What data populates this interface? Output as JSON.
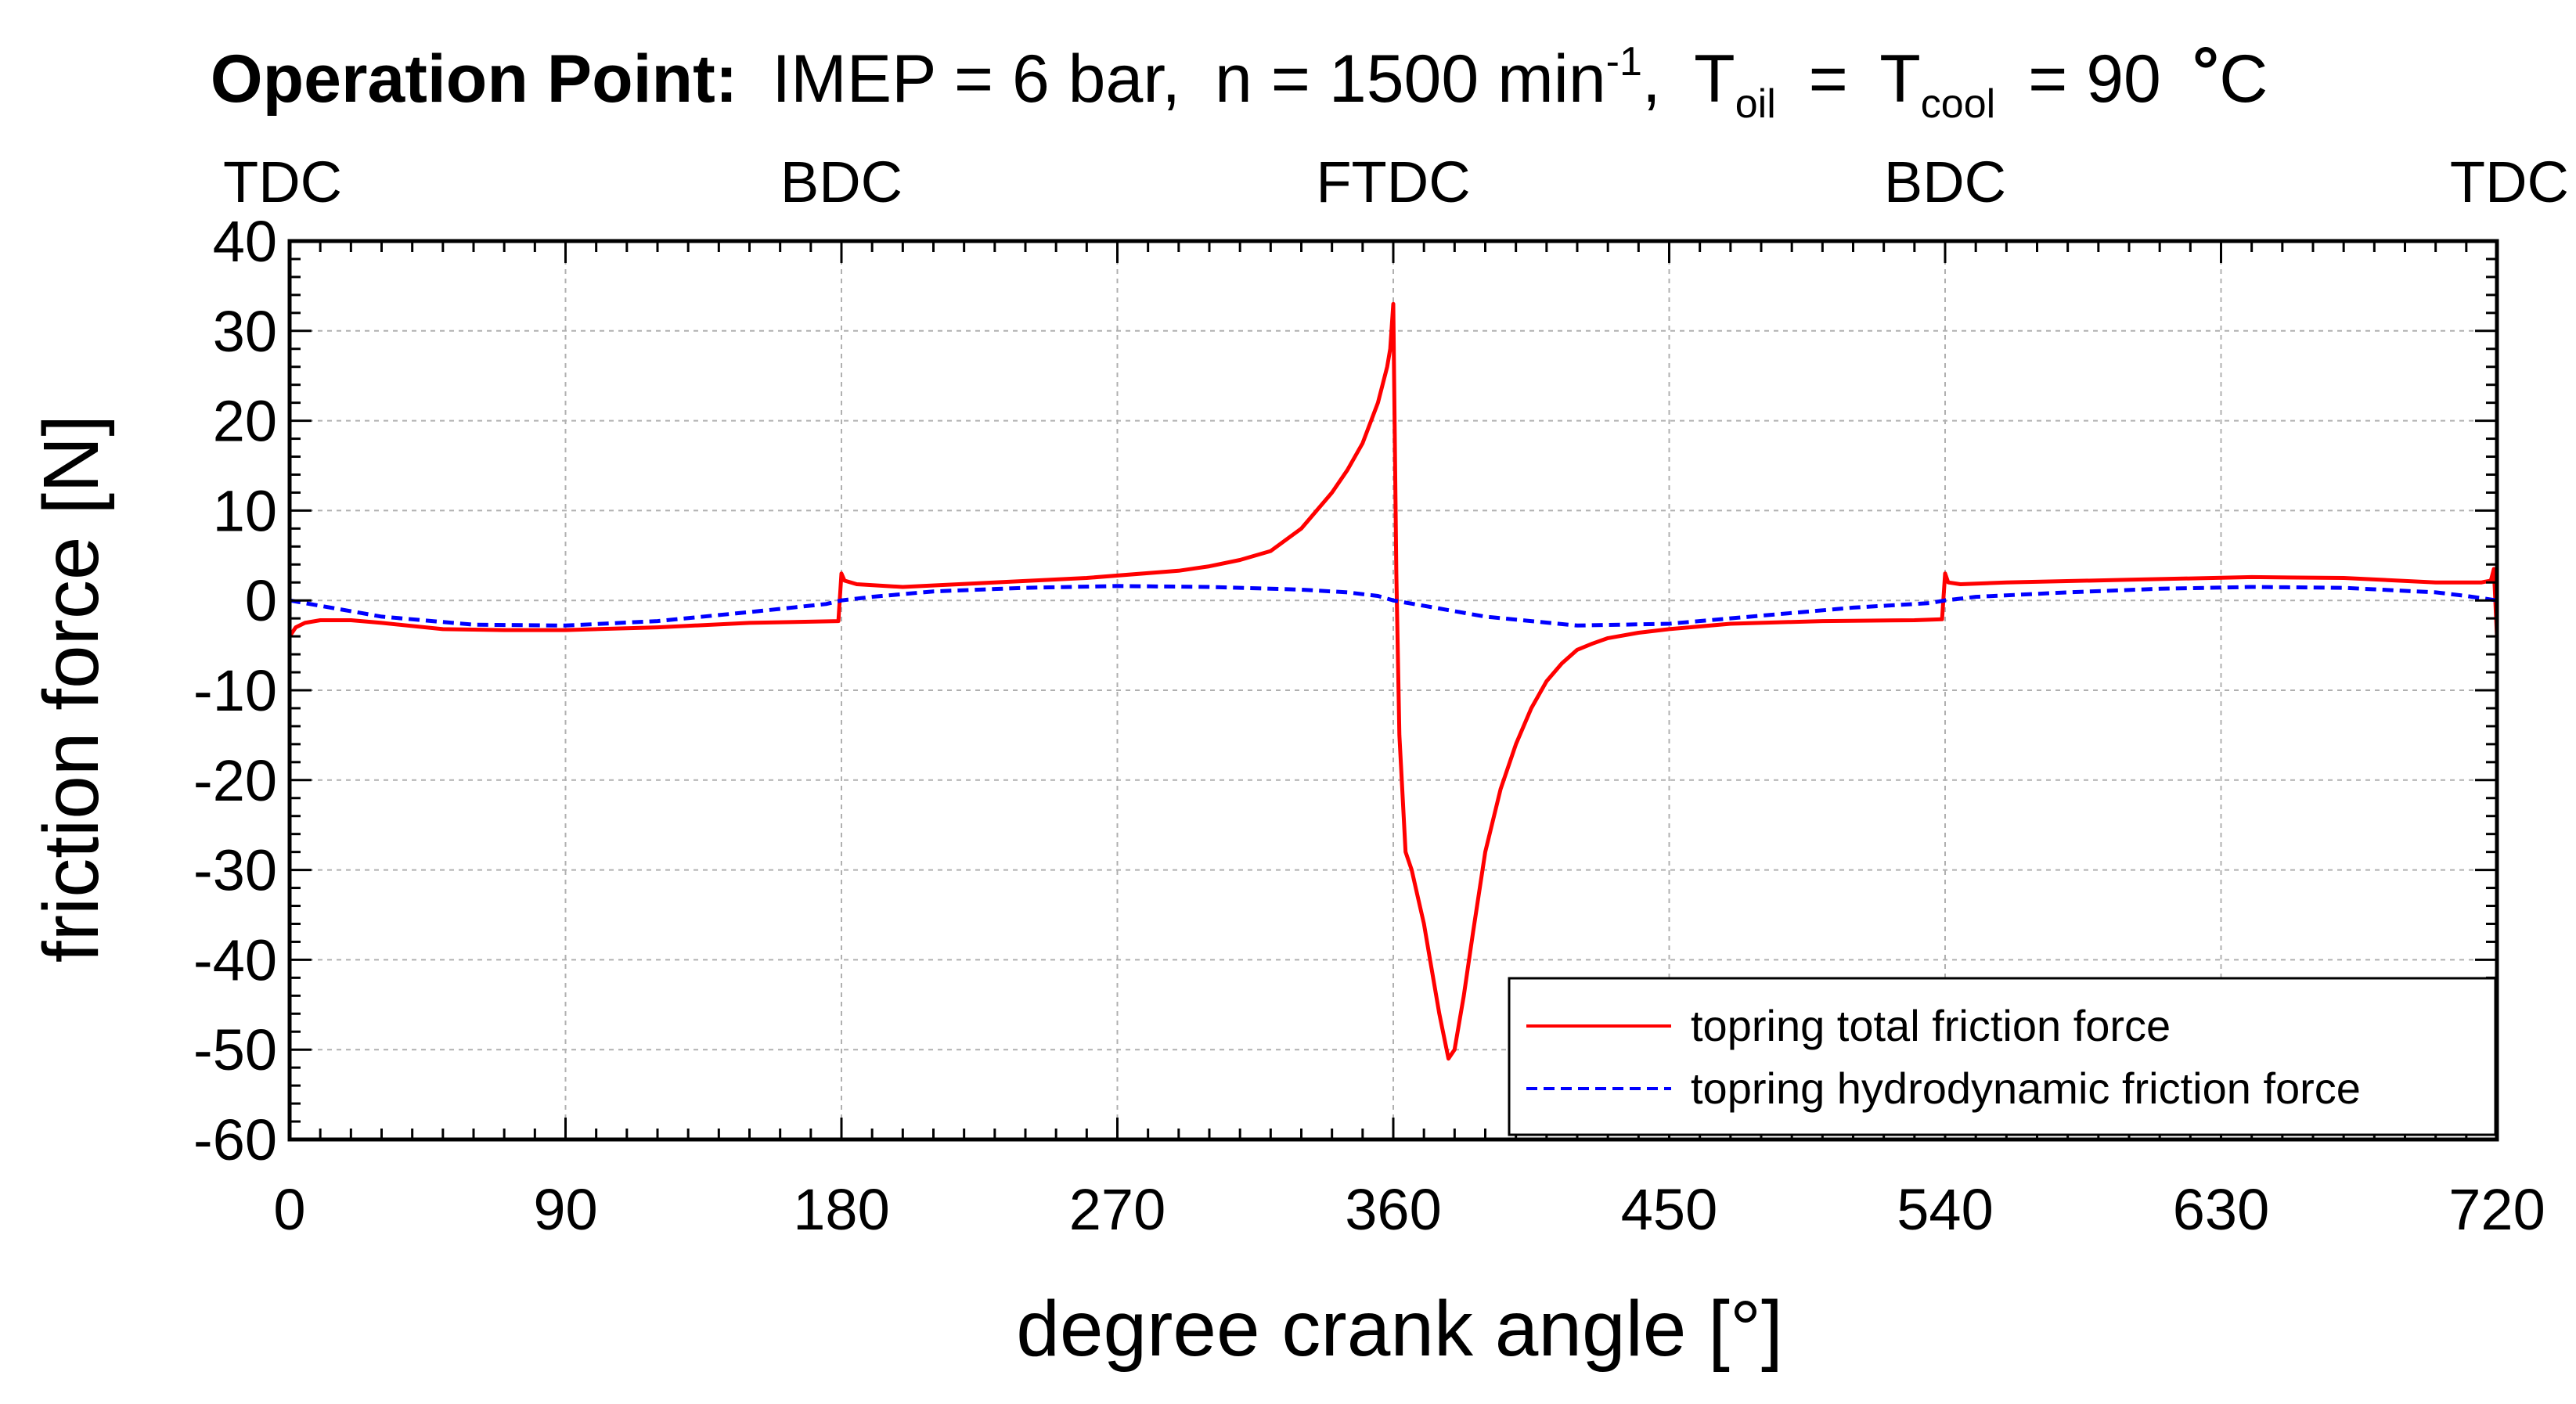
{
  "chart_data": {
    "type": "line",
    "title": {
      "bold": "Operation Point:",
      "imep": "IMEP = 6 bar,",
      "speed": "n = 1500 min",
      "speed_exp": "-1",
      "t_oil": "T",
      "t_oil_sub": "oil",
      "equals": "=",
      "t_cool": "T",
      "t_cool_sub": "cool",
      "temp": "= 90",
      "deg": "°",
      "unit": "C"
    },
    "top_markers": [
      {
        "label": "TDC",
        "x": 0
      },
      {
        "label": "BDC",
        "x": 180
      },
      {
        "label": "FTDC",
        "x": 360
      },
      {
        "label": "BDC",
        "x": 540
      },
      {
        "label": "TDC",
        "x": 720
      }
    ],
    "xlabel": "degree crank angle [°]",
    "ylabel": "friction force [N]",
    "xlim": [
      0,
      720
    ],
    "ylim": [
      -60,
      40
    ],
    "xticks": [
      0,
      90,
      180,
      270,
      360,
      450,
      540,
      630,
      720
    ],
    "yticks": [
      40,
      30,
      20,
      10,
      0,
      -10,
      -20,
      -30,
      -40,
      -50,
      -60
    ],
    "grid": true,
    "legend_position": "bottom-right",
    "series": [
      {
        "name": "topring total friction force",
        "color": "#ff0000",
        "style": "solid",
        "x": [
          0,
          2,
          5,
          10,
          20,
          30,
          50,
          70,
          90,
          120,
          150,
          179,
          180,
          181,
          185,
          200,
          230,
          260,
          290,
          300,
          310,
          320,
          330,
          340,
          345,
          350,
          355,
          358,
          359,
          360,
          361,
          362,
          364,
          366,
          368,
          370,
          372,
          375,
          378,
          380,
          383,
          386,
          390,
          395,
          400,
          405,
          410,
          415,
          420,
          425,
          430,
          440,
          450,
          470,
          500,
          530,
          539,
          540,
          541,
          545,
          560,
          600,
          640,
          670,
          700,
          715,
          718,
          719,
          720
        ],
        "y": [
          -4,
          -3,
          -2.5,
          -2.2,
          -2.2,
          -2.5,
          -3.2,
          -3.3,
          -3.3,
          -3,
          -2.5,
          -2.3,
          3.0,
          2.2,
          1.8,
          1.5,
          2.0,
          2.5,
          3.3,
          3.8,
          4.5,
          5.5,
          8,
          12,
          14.5,
          17.5,
          22,
          26,
          28,
          33,
          3,
          -15,
          -28,
          -30,
          -33,
          -36,
          -40,
          -46,
          -51,
          -50,
          -44,
          -37,
          -28,
          -21,
          -16,
          -12,
          -9,
          -7,
          -5.5,
          -4.8,
          -4.2,
          -3.6,
          -3.2,
          -2.6,
          -2.3,
          -2.2,
          -2.1,
          3.0,
          2.0,
          1.8,
          2.0,
          2.3,
          2.6,
          2.5,
          2.0,
          2.0,
          2.2,
          3.5,
          -4
        ]
      },
      {
        "name": "topring hydrodynamic friction force",
        "color": "#0000ff",
        "style": "dashed",
        "x": [
          0,
          10,
          30,
          60,
          90,
          120,
          150,
          175,
          180,
          190,
          210,
          240,
          270,
          300,
          330,
          345,
          355,
          360,
          370,
          390,
          420,
          450,
          480,
          510,
          535,
          540,
          550,
          580,
          610,
          640,
          670,
          700,
          710,
          720
        ],
        "y": [
          0,
          -0.6,
          -1.8,
          -2.7,
          -2.8,
          -2.3,
          -1.3,
          -0.4,
          0,
          0.4,
          1.0,
          1.4,
          1.6,
          1.5,
          1.2,
          0.9,
          0.5,
          0,
          -0.6,
          -1.8,
          -2.8,
          -2.6,
          -1.7,
          -0.8,
          -0.3,
          0,
          0.4,
          0.9,
          1.3,
          1.5,
          1.4,
          0.9,
          0.5,
          0
        ]
      }
    ]
  }
}
